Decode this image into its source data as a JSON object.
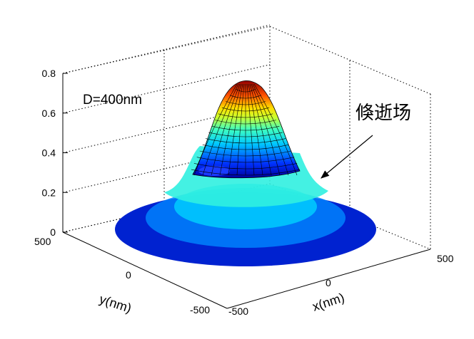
{
  "chart_data": {
    "type": "surface",
    "title": "",
    "xlabel": "x(nm)",
    "ylabel": "y(nm)",
    "zlabel": "",
    "xlim": [
      -500,
      500
    ],
    "ylim": [
      -500,
      500
    ],
    "zlim": [
      0,
      0.8
    ],
    "x_ticks": [
      "-500",
      "0",
      "500"
    ],
    "y_ticks": [
      "-500",
      "0",
      "500"
    ],
    "z_ticks": [
      "0",
      "0.2",
      "0.4",
      "0.6",
      "0.8"
    ],
    "grid": true,
    "colormap": "jet",
    "radial_profile": {
      "r": [
        0,
        50,
        100,
        150,
        200,
        250,
        300,
        350,
        400,
        450,
        500
      ],
      "value": [
        0.76,
        0.72,
        0.61,
        0.46,
        0.33,
        0.24,
        0.18,
        0.13,
        0.09,
        0.05,
        0.02
      ]
    },
    "annotations": [
      {
        "text": "D=400nm"
      },
      {
        "text": "倏逝场",
        "arrow": true
      }
    ]
  }
}
